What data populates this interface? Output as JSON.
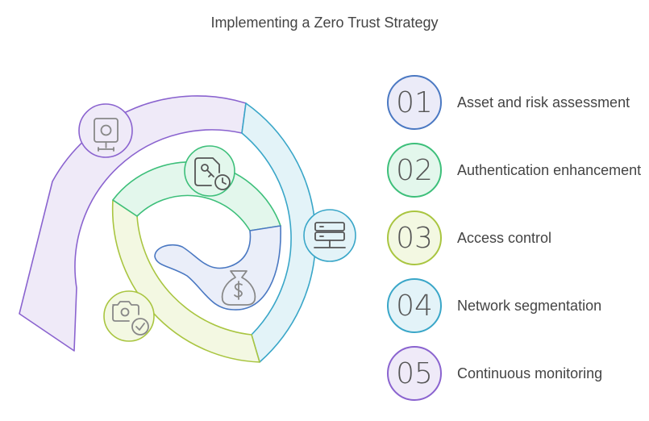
{
  "title": "Implementing a Zero Trust Strategy",
  "steps": [
    {
      "number": "01",
      "label": "Asset and risk assessment",
      "icon": "cctv-camera-icon",
      "fill": "#ebebf8",
      "stroke": "#4a78c2"
    },
    {
      "number": "02",
      "label": "Authentication enhancement",
      "icon": "key-document-clock-icon",
      "fill": "#e3f7ec",
      "stroke": "#3dbf7a"
    },
    {
      "number": "03",
      "label": "Access control",
      "icon": "camera-check-icon",
      "fill": "#f3f8e2",
      "stroke": "#a9c540"
    },
    {
      "number": "04",
      "label": "Network segmentation",
      "icon": "server-network-icon",
      "fill": "#e3f3f8",
      "stroke": "#39a6c8"
    },
    {
      "number": "05",
      "label": "Continuous monitoring",
      "icon": "money-bag-icon",
      "fill": "#efeaf8",
      "stroke": "#8a63cf"
    }
  ]
}
